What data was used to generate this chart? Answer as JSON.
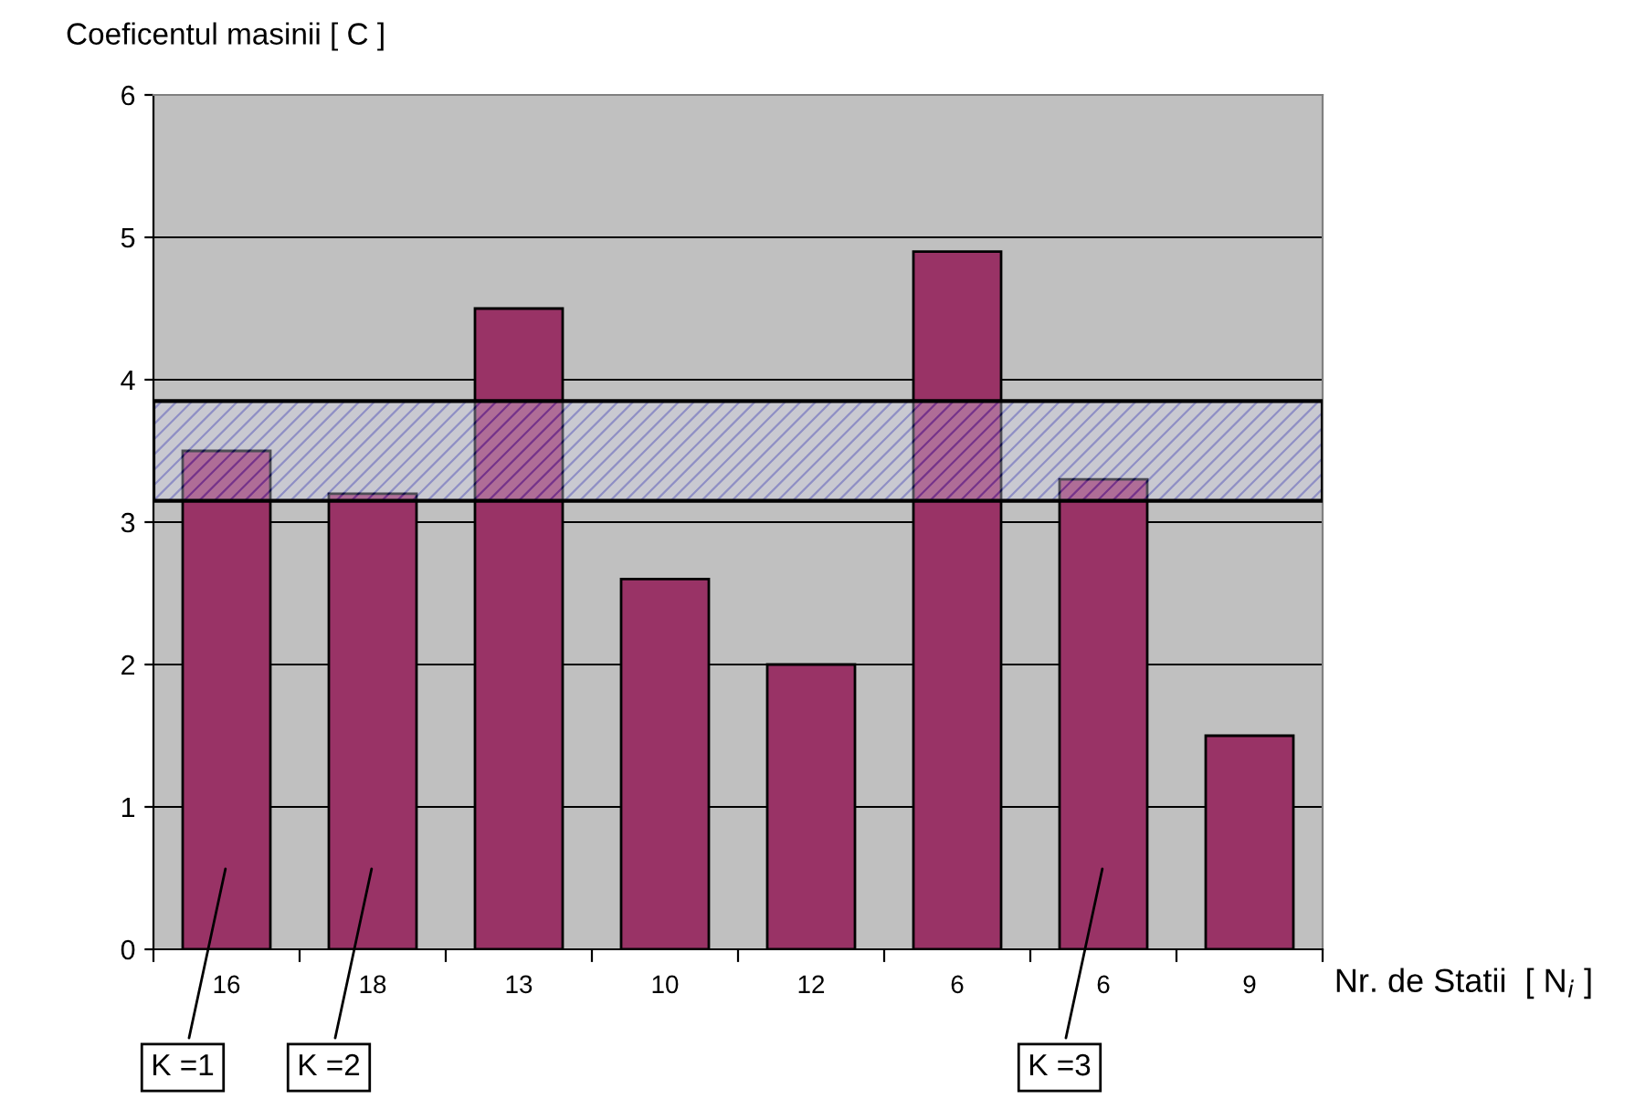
{
  "chart_data": {
    "type": "bar",
    "xlabel": "Nr. de Statii  [ N$_{i}$ ]",
    "ylabel": "Coeficentul masinii [ C ]",
    "categories": [
      "16",
      "18",
      "13",
      "10",
      "12",
      "6",
      "6",
      "9"
    ],
    "values": [
      3.5,
      3.2,
      4.5,
      2.6,
      2.0,
      4.9,
      3.3,
      1.5
    ],
    "color": "#993366",
    "ylim": [
      0,
      6
    ],
    "yticks": [
      0,
      1,
      2,
      3,
      4,
      5,
      6
    ],
    "grid": "y",
    "bands": [
      {
        "axis": "y",
        "from": 3.15,
        "to": 3.85,
        "color": "#3333cc"
      }
    ],
    "annotations": [
      "K =1",
      "K =2",
      "K =3"
    ]
  }
}
